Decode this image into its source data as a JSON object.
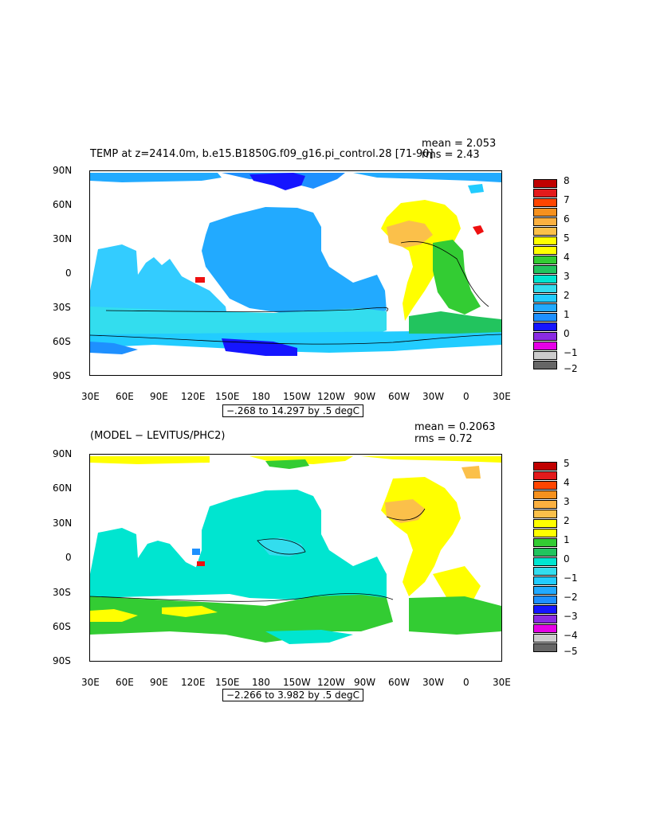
{
  "panel1": {
    "title": "TEMP at z=2414.0m, b.e15.B1850G.f09_g16.pi_control.28 [71-90]",
    "mean": "mean = 2.053",
    "rms": "rms = 2.43",
    "range": "−.268 to 14.297 by .5 degC",
    "colorbar": {
      "labels": [
        "8",
        "7",
        "6",
        "5",
        "4",
        "3",
        "2",
        "1",
        "0",
        "−1",
        "−2"
      ],
      "colors": [
        "#c00000",
        "#e31a1c",
        "#fb6a4a",
        "#f6911e",
        "#fbb040",
        "#ffff00",
        "#33cc33",
        "#22b14c",
        "#00e5e5",
        "#33ccff",
        "#1e90ff",
        "#1515ff",
        "#8a2be2",
        "#ff00ff",
        "#cccccc",
        "#666666"
      ]
    }
  },
  "panel2": {
    "title": "(MODEL − LEVITUS/PHC2)",
    "mean": "mean = 0.2063",
    "rms": "rms = 0.72",
    "range": "−2.266 to 3.982 by .5 degC",
    "colorbar": {
      "labels": [
        "5",
        "4",
        "3",
        "2",
        "1",
        "0",
        "−1",
        "−2",
        "−3",
        "−4",
        "−5"
      ]
    }
  },
  "axes": {
    "lat_labels": [
      "90N",
      "60N",
      "30N",
      "0",
      "30S",
      "60S",
      "90S"
    ],
    "lon_labels": [
      "30E",
      "60E",
      "90E",
      "120E",
      "150E",
      "180",
      "150W",
      "120W",
      "90W",
      "60W",
      "30W",
      "0",
      "30E"
    ]
  },
  "legend_colors": {
    "dark_red": "#c00000",
    "red": "#ee1010",
    "orange_red": "#ff4500",
    "orange": "#f6911e",
    "light_orange": "#fbc04a",
    "yellow": "#ffff00",
    "green_bright": "#33cc33",
    "green": "#22c45e",
    "aqua": "#00e5d0",
    "cyan": "#33ddee",
    "sky": "#22ccff",
    "blue_mid": "#1e90ff",
    "blue": "#1515ff",
    "purple": "#8a2be2",
    "magenta": "#e600e6",
    "light_gray": "#cccccc",
    "dark_gray": "#666666"
  }
}
